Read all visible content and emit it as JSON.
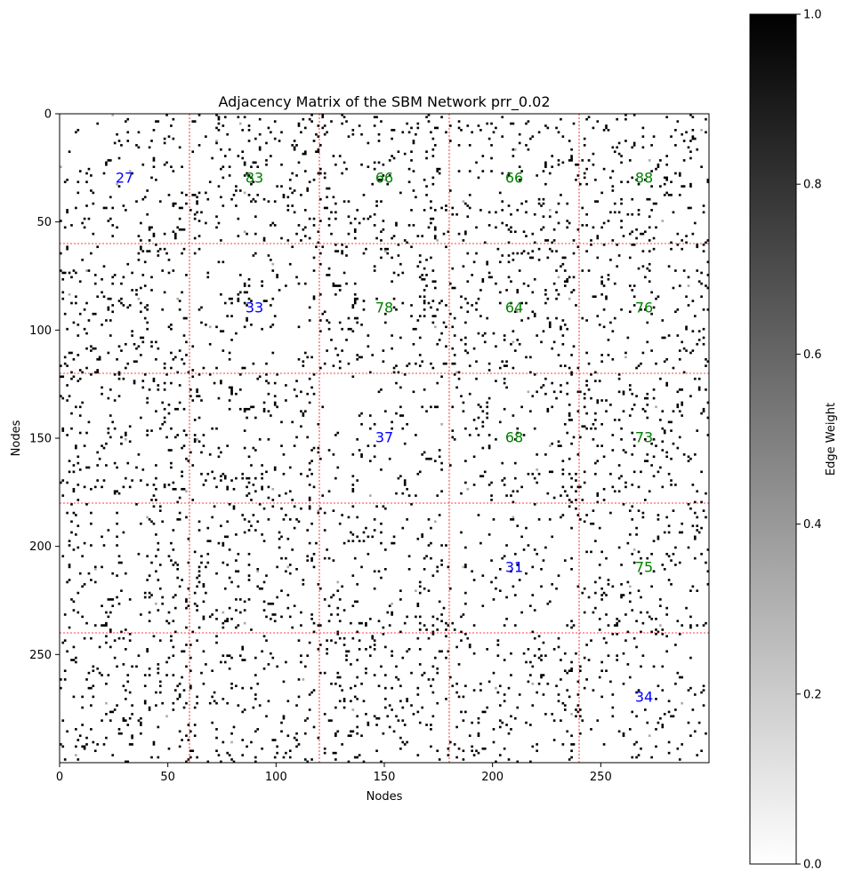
{
  "chart_data": {
    "type": "heatmap",
    "title": "Adjacency Matrix of the SBM Network prr_0.02",
    "xlabel": "Nodes",
    "ylabel": "Nodes",
    "n_nodes": 300,
    "xlim": [
      0,
      300
    ],
    "ylim": [
      300,
      0
    ],
    "x_ticks": [
      0,
      50,
      100,
      150,
      200,
      250
    ],
    "y_ticks": [
      0,
      50,
      100,
      150,
      200,
      250
    ],
    "block_boundaries": [
      60,
      120,
      180,
      240
    ],
    "block_size": 60,
    "boundary_color": "#ff0000",
    "cmap": "Greys",
    "colorbar": {
      "label": "Edge Weight",
      "range": [
        0.0,
        1.0
      ],
      "ticks": [
        "0.0",
        "0.2",
        "0.4",
        "0.6",
        "0.8",
        "1.0"
      ]
    },
    "block_edge_counts": [
      {
        "row": 0,
        "col": 0,
        "value": "27",
        "color": "#0000ff"
      },
      {
        "row": 0,
        "col": 1,
        "value": "83",
        "color": "#008000"
      },
      {
        "row": 0,
        "col": 2,
        "value": "66",
        "color": "#008000"
      },
      {
        "row": 0,
        "col": 3,
        "value": "66",
        "color": "#008000"
      },
      {
        "row": 0,
        "col": 4,
        "value": "88",
        "color": "#008000"
      },
      {
        "row": 1,
        "col": 1,
        "value": "33",
        "color": "#0000ff"
      },
      {
        "row": 1,
        "col": 2,
        "value": "78",
        "color": "#008000"
      },
      {
        "row": 1,
        "col": 3,
        "value": "64",
        "color": "#008000"
      },
      {
        "row": 1,
        "col": 4,
        "value": "76",
        "color": "#008000"
      },
      {
        "row": 2,
        "col": 2,
        "value": "37",
        "color": "#0000ff"
      },
      {
        "row": 2,
        "col": 3,
        "value": "68",
        "color": "#008000"
      },
      {
        "row": 2,
        "col": 4,
        "value": "73",
        "color": "#008000"
      },
      {
        "row": 3,
        "col": 3,
        "value": "31",
        "color": "#0000ff"
      },
      {
        "row": 3,
        "col": 4,
        "value": "75",
        "color": "#008000"
      },
      {
        "row": 4,
        "col": 4,
        "value": "34",
        "color": "#0000ff"
      }
    ],
    "edge_probability": 0.02
  }
}
